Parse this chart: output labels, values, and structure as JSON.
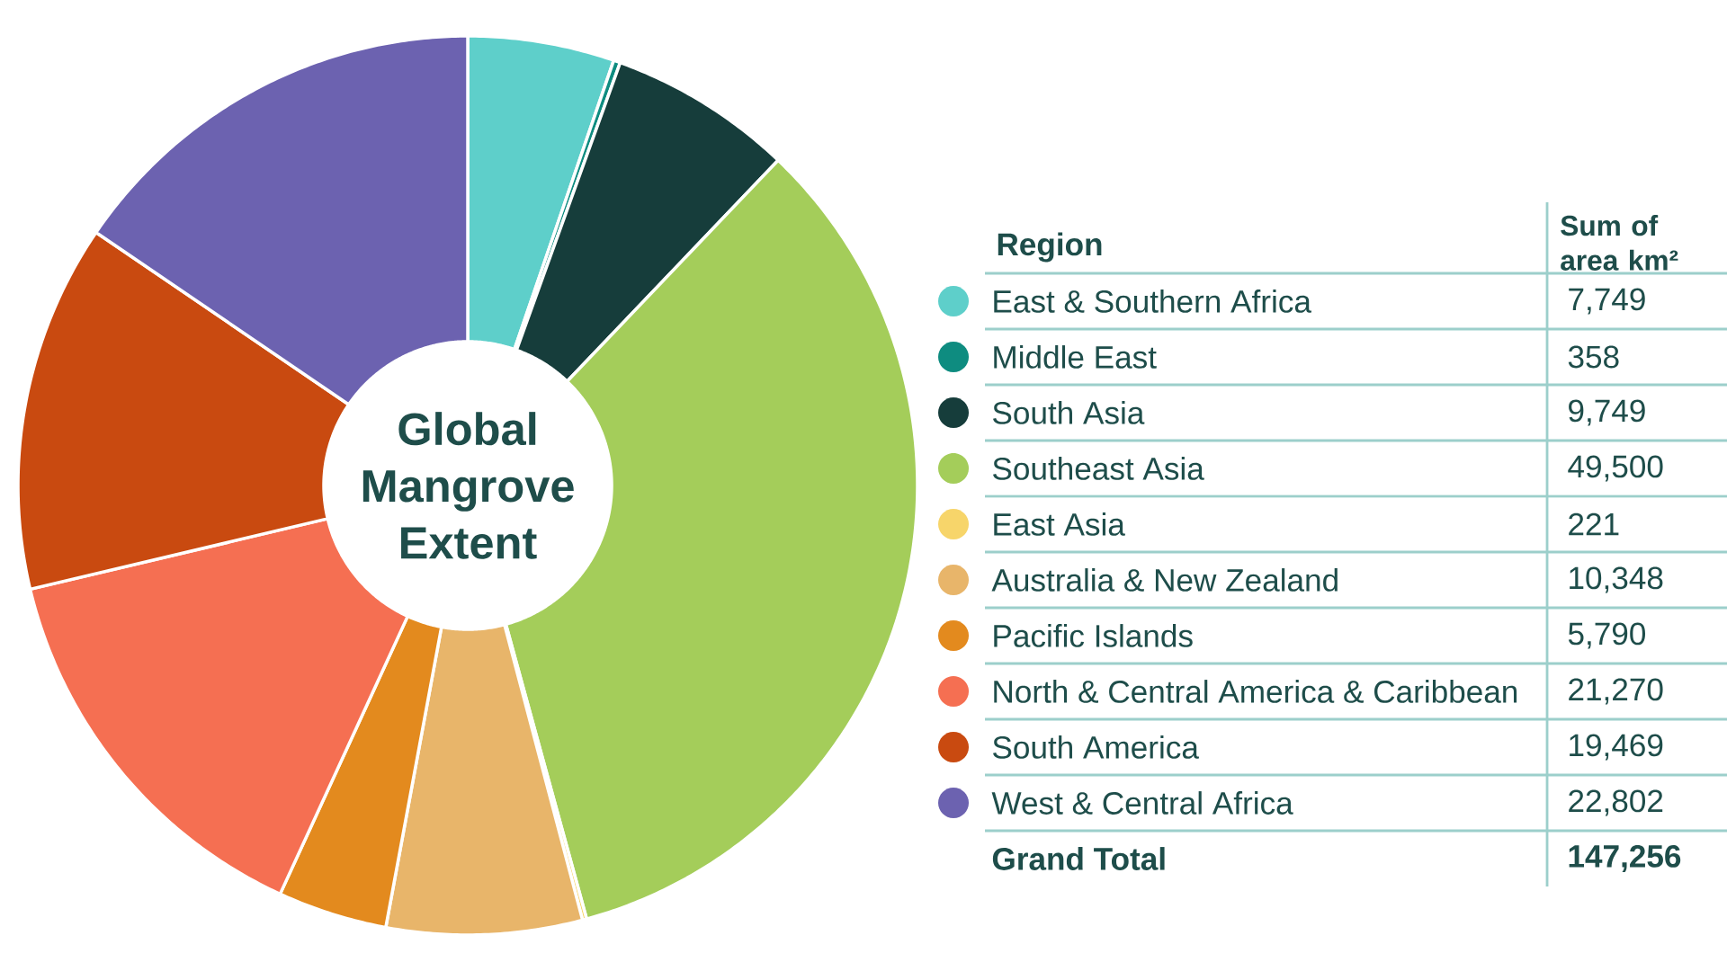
{
  "chart_data": {
    "type": "donut",
    "title": "Global Mangrove Extent",
    "legend_title": "Region",
    "legend": "right",
    "ylabel": "Sum of area km²",
    "categories": [
      "East & Southern Africa",
      "Middle East",
      "South Asia",
      "Southeast Asia",
      "East Asia",
      "Australia & New Zealand",
      "Pacific Islands",
      "North & Central America & Caribbean",
      "South America",
      "West & Central Africa"
    ],
    "values": [
      7749,
      358,
      9749,
      49500,
      221,
      10348,
      5790,
      21270,
      19469,
      22802
    ],
    "value_labels": [
      "7,749",
      "358",
      "9,749",
      "49,500",
      "221",
      "10,348",
      "5,790",
      "21,270",
      "19,469",
      "22,802"
    ],
    "colors": [
      "#5ecfca",
      "#0e8c80",
      "#163d3b",
      "#a4cd5a",
      "#f7d56a",
      "#e8b56a",
      "#e38a1e",
      "#f56f52",
      "#c94a10",
      "#6c62b0"
    ],
    "annotations": [
      "Grand Total",
      "147,256"
    ]
  }
}
